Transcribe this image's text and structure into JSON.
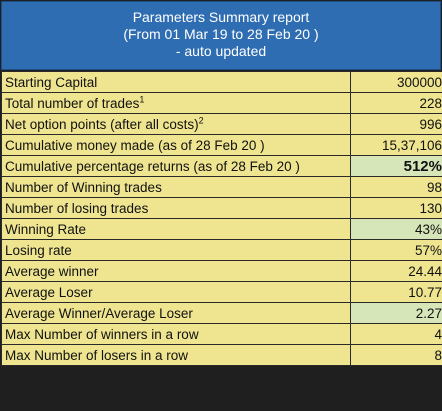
{
  "header": {
    "line1": "Parameters Summary report",
    "line2": "(From 01 Mar 19 to 28 Feb 20 )",
    "line3": "- auto updated"
  },
  "rows": [
    {
      "label": "Starting Capital",
      "sup": "",
      "value": "300000",
      "highlight": false,
      "big": false
    },
    {
      "label": "Total number of trades",
      "sup": "1",
      "value": "228",
      "highlight": false,
      "big": false
    },
    {
      "label": "Net option points (after all costs)",
      "sup": "2",
      "value": "996",
      "highlight": false,
      "big": false
    },
    {
      "label": "Cumulative money made (as of 28 Feb 20 )",
      "sup": "",
      "value": "15,37,106",
      "highlight": false,
      "big": false
    },
    {
      "label": "Cumulative percentage returns (as of 28 Feb 20 )",
      "sup": "",
      "value": "512%",
      "highlight": true,
      "big": true
    },
    {
      "label": "Number of Winning trades",
      "sup": "",
      "value": "98",
      "highlight": false,
      "big": false
    },
    {
      "label": "Number of losing trades",
      "sup": "",
      "value": "130",
      "highlight": false,
      "big": false
    },
    {
      "label": "Winning Rate",
      "sup": "",
      "value": "43%",
      "highlight": true,
      "big": false
    },
    {
      "label": "Losing rate",
      "sup": "",
      "value": "57%",
      "highlight": false,
      "big": false
    },
    {
      "label": "Average winner",
      "sup": "",
      "value": "24.44",
      "highlight": false,
      "big": false
    },
    {
      "label": "Average Loser",
      "sup": "",
      "value": "10.77",
      "highlight": false,
      "big": false
    },
    {
      "label": "Average Winner/Average Loser",
      "sup": "",
      "value": "2.27",
      "highlight": true,
      "big": false
    },
    {
      "label": "Max Number of winners in a row",
      "sup": "",
      "value": "4",
      "highlight": false,
      "big": false
    },
    {
      "label": "Max Number of losers in a row",
      "sup": "",
      "value": "8",
      "highlight": false,
      "big": false
    }
  ]
}
